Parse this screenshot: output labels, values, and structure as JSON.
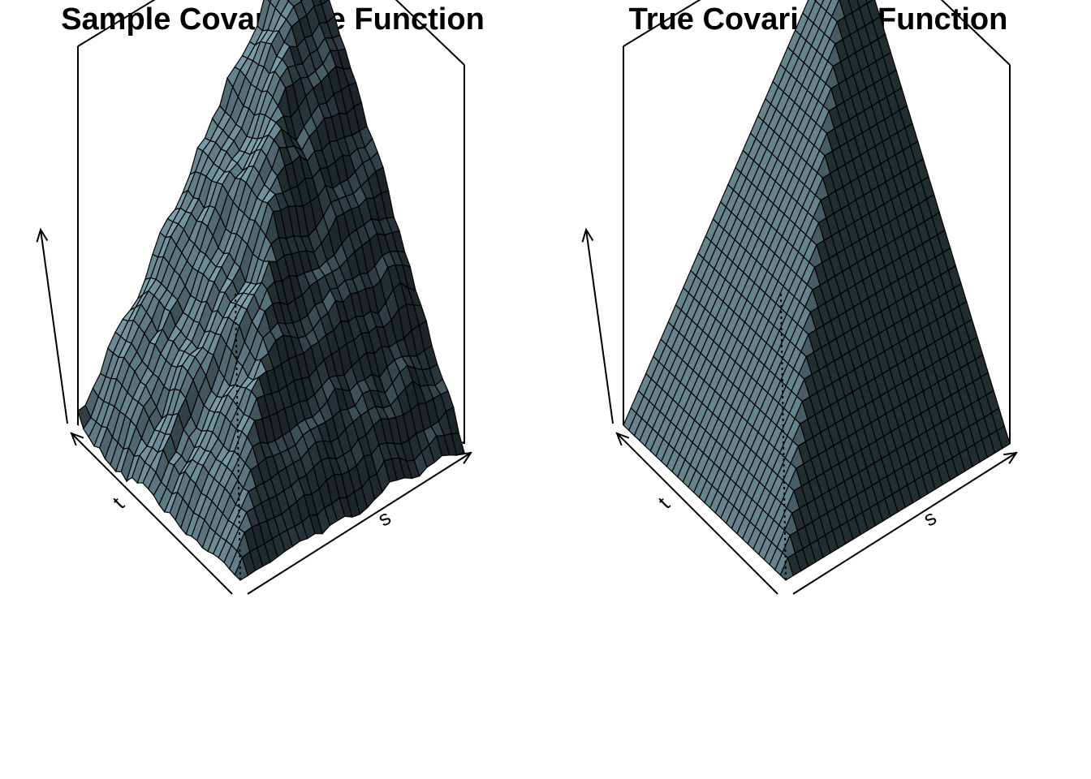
{
  "chart_data": [
    {
      "type": "surface",
      "title": "Sample Covariance Function",
      "xlabel": "s",
      "ylabel": "t",
      "zlabel": "",
      "xlim": [
        0,
        1
      ],
      "ylim": [
        0,
        1
      ],
      "grid": false,
      "surface": "min(s,t) with sampling noise",
      "color": "#6e8f9a",
      "noise": 0.035,
      "seed": 7
    },
    {
      "type": "surface",
      "title": "True Covariance Function",
      "xlabel": "s",
      "ylabel": "t",
      "zlabel": "",
      "xlim": [
        0,
        1
      ],
      "ylim": [
        0,
        1
      ],
      "grid": false,
      "surface": "min(s,t)",
      "color": "#6e8f9a",
      "noise": 0,
      "seed": 1
    }
  ]
}
